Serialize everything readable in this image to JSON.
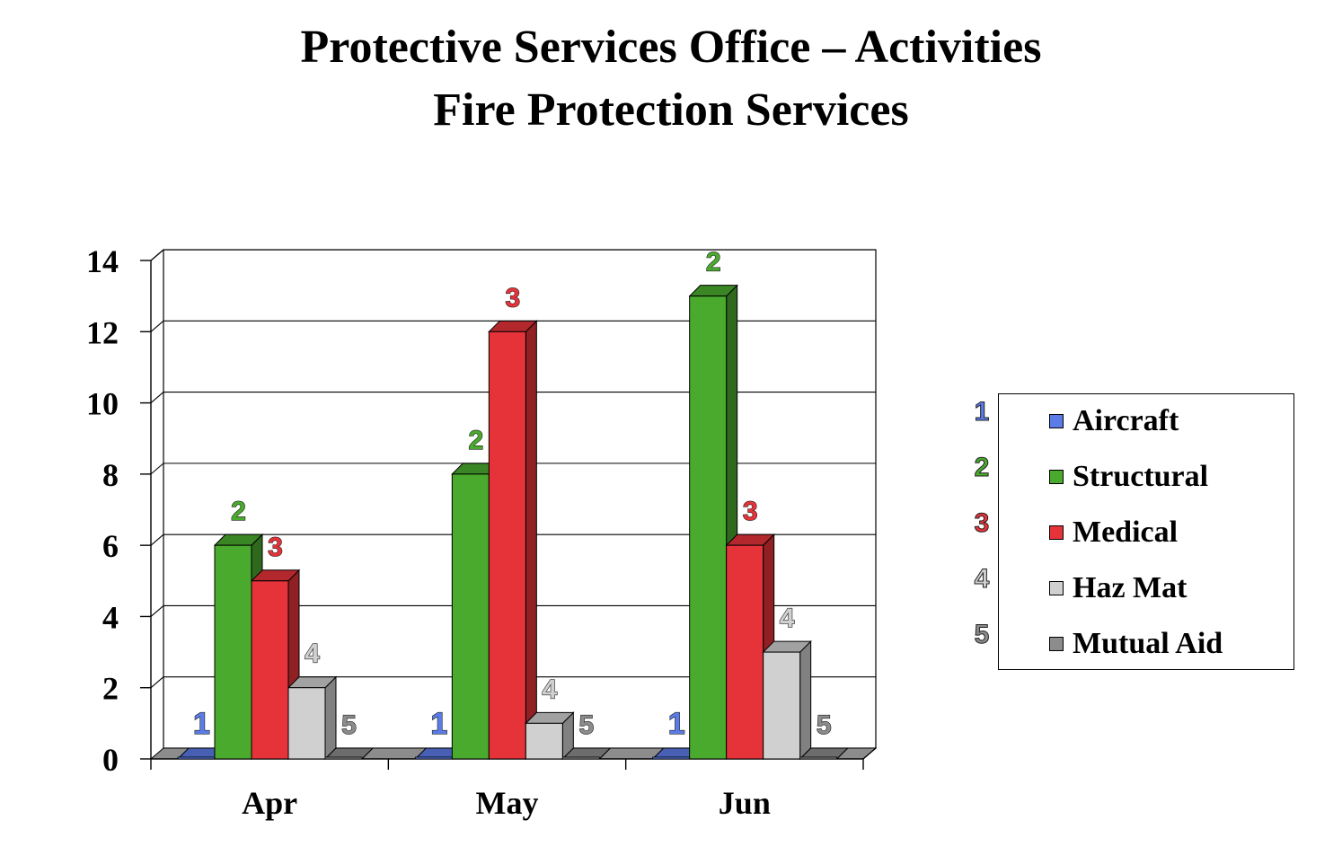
{
  "title": "Protective Services Office – Activities",
  "subtitle": "Fire Protection Services",
  "chart_data": {
    "type": "bar",
    "title": "Protective Services Office – Activities",
    "subtitle": "Fire Protection Services",
    "categories": [
      "Apr",
      "May",
      "Jun"
    ],
    "ylim": [
      0,
      14
    ],
    "yticks": [
      "0",
      "2",
      "4",
      "6",
      "8",
      "10",
      "12",
      "14"
    ],
    "grid": true,
    "legend_position": "right",
    "series": [
      {
        "name": "Aircraft",
        "label": "1",
        "color": "#5b7be6",
        "values": [
          0,
          0,
          0
        ]
      },
      {
        "name": "Structural",
        "label": "2",
        "color": "#4aaa2e",
        "values": [
          6,
          8,
          13
        ]
      },
      {
        "name": "Medical",
        "label": "3",
        "color": "#e6333a",
        "values": [
          5,
          12,
          6
        ]
      },
      {
        "name": "Haz Mat",
        "label": "4",
        "color": "#d0d0d0",
        "values": [
          2,
          1,
          3
        ]
      },
      {
        "name": "Mutual Aid",
        "label": "5",
        "color": "#8c8c8c",
        "values": [
          0,
          0,
          0
        ]
      }
    ]
  }
}
